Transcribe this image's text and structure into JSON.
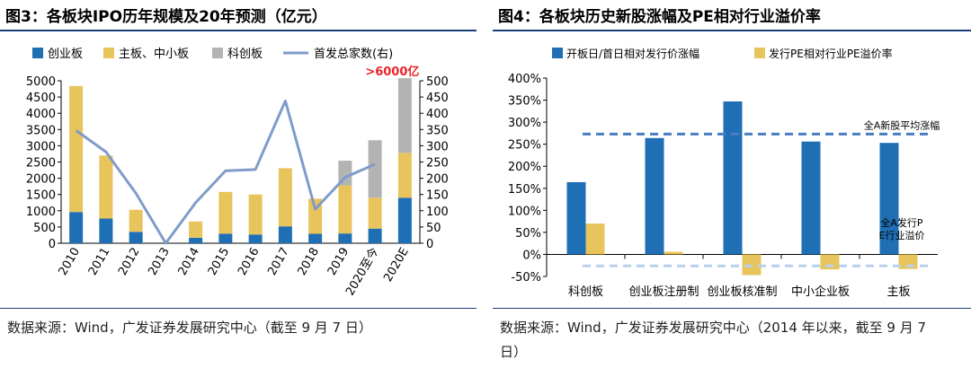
{
  "left": {
    "title": "图3：各板块IPO历年规模及20年预测（亿元）",
    "source": "数据来源：Wind，广发证券发展研究中心（截至 9 月 7 日）",
    "annotation": ">6000亿",
    "chart_data": {
      "type": "bar",
      "stacked": true,
      "categories": [
        "2010",
        "2011",
        "2012",
        "2013",
        "2014",
        "2015",
        "2016",
        "2017",
        "2018",
        "2019",
        "2020至今",
        "2020E"
      ],
      "series": [
        {
          "name": "创业板",
          "color": "#1f6fb5",
          "values": [
            960,
            760,
            350,
            0,
            170,
            290,
            270,
            520,
            290,
            300,
            450,
            1400
          ]
        },
        {
          "name": "主板、中小板",
          "color": "#e8c45c",
          "values": [
            3880,
            1940,
            680,
            0,
            500,
            1290,
            1230,
            1790,
            1080,
            1480,
            950,
            1380
          ]
        },
        {
          "name": "科创板",
          "color": "#b3b3b3",
          "values": [
            0,
            0,
            0,
            0,
            0,
            0,
            0,
            0,
            0,
            760,
            1770,
            2300
          ]
        }
      ],
      "line": {
        "name": "首发总家数(右)",
        "color": "#7f9cc9",
        "values": [
          347,
          281,
          154,
          0,
          125,
          223,
          227,
          438,
          105,
          203,
          243,
          null
        ]
      },
      "ylim_left": [
        0,
        5000
      ],
      "yticks_left": [
        0,
        500,
        1000,
        1500,
        2000,
        2500,
        3000,
        3500,
        4000,
        4500,
        5000
      ],
      "ylim_right": [
        0,
        500
      ],
      "yticks_right": [
        0,
        50,
        100,
        150,
        200,
        250,
        300,
        350,
        400,
        450,
        500
      ],
      "legend_position": "top"
    }
  },
  "right": {
    "title": "图4：各板块历史新股涨幅及PE相对行业溢价率",
    "source": "数据来源：Wind，广发证券发展研究中心（2014 年以来，截至 9 月 7 日）",
    "chart_data": {
      "type": "bar",
      "categories": [
        "科创板",
        "创业板注册制",
        "创业板核准制",
        "中小企业板",
        "主板"
      ],
      "series": [
        {
          "name": "开板日/首日相对发行价涨幅",
          "color": "#1f6fb5",
          "values": [
            1.64,
            2.64,
            3.47,
            2.56,
            2.53
          ]
        },
        {
          "name": "发行PE相对行业PE溢价率",
          "color": "#e8c45c",
          "values": [
            0.7,
            0.06,
            -0.47,
            -0.34,
            -0.33
          ]
        }
      ],
      "reference_lines": [
        {
          "label": "全A新股平均涨幅",
          "value": 2.73,
          "color": "#4a7cc0"
        },
        {
          "label": "全A发行PE行业溢价",
          "value": -0.26,
          "color": "#b9d0ea"
        }
      ],
      "ylim": [
        -0.5,
        4.0
      ],
      "ytick_labels": [
        "-50%",
        "0%",
        "50%",
        "100%",
        "150%",
        "200%",
        "250%",
        "300%",
        "350%",
        "400%"
      ],
      "legend_position": "top"
    }
  }
}
